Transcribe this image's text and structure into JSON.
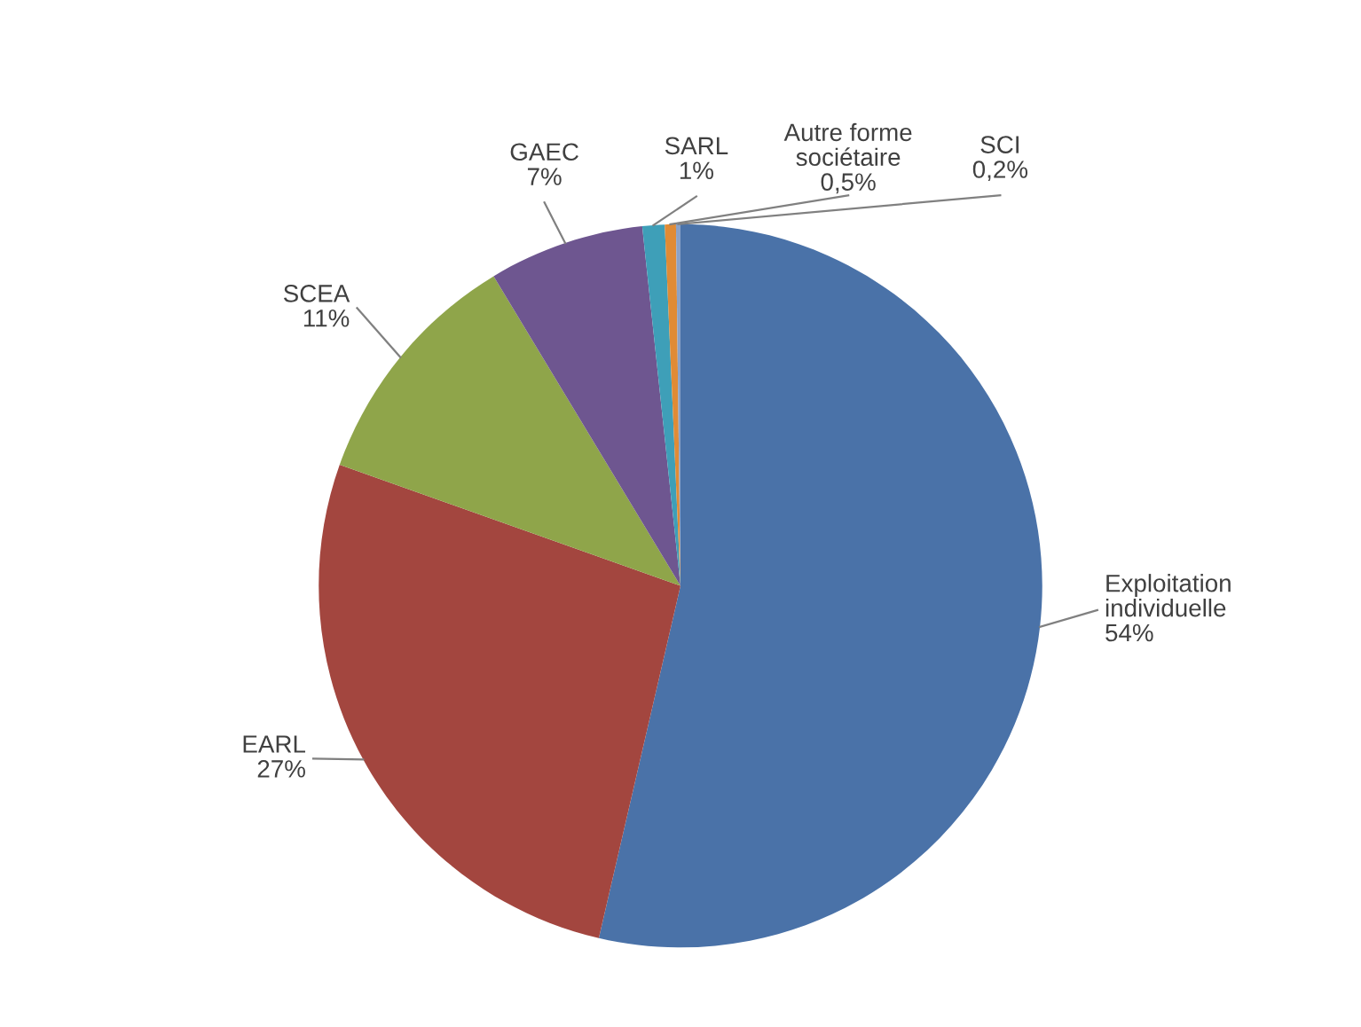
{
  "chart_data": {
    "type": "pie",
    "categories": [
      "Exploitation\nindividuelle",
      "EARL",
      "SCEA",
      "GAEC",
      "SARL",
      "Autre forme\nsociétaire",
      "SCI"
    ],
    "values": [
      54,
      27,
      11,
      7,
      1,
      0.5,
      0.2
    ],
    "value_labels": [
      "54%",
      "27%",
      "11%",
      "7%",
      "1%",
      "0,5%",
      "0,2%"
    ],
    "colors": [
      "#4a72a8",
      "#a3463f",
      "#8fa54a",
      "#6e5690",
      "#3e9fb8",
      "#e08b35",
      "#8aa2c8"
    ]
  }
}
